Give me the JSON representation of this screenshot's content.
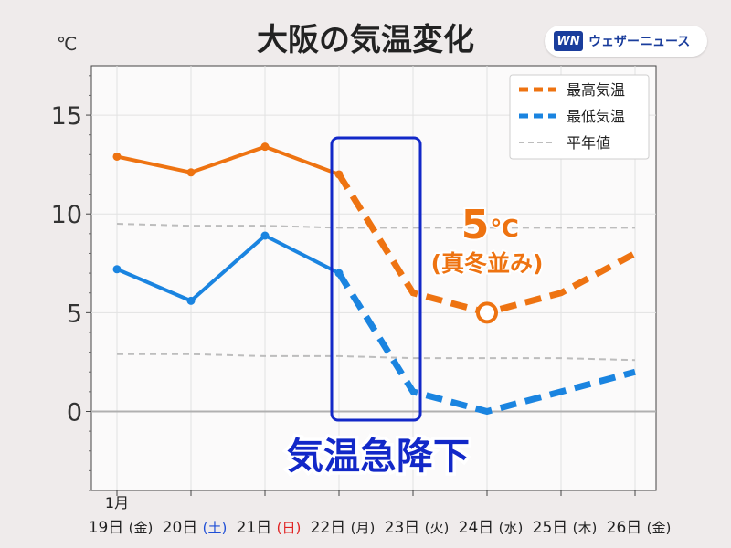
{
  "title": "大阪の気温変化",
  "unit_label": "℃",
  "brand": {
    "logo": "WN",
    "name": "ウェザーニュース"
  },
  "chart_data": {
    "type": "line",
    "x": [
      {
        "month": "1月",
        "day": "19日",
        "dow": "(金)",
        "dow_color": "#222222"
      },
      {
        "month": "",
        "day": "20日",
        "dow": "(土)",
        "dow_color": "#1f4fd6"
      },
      {
        "month": "",
        "day": "21日",
        "dow": "(日)",
        "dow_color": "#e02020"
      },
      {
        "month": "",
        "day": "22日",
        "dow": "(月)",
        "dow_color": "#222222"
      },
      {
        "month": "",
        "day": "23日",
        "dow": "(火)",
        "dow_color": "#222222"
      },
      {
        "month": "",
        "day": "24日",
        "dow": "(水)",
        "dow_color": "#222222"
      },
      {
        "month": "",
        "day": "25日",
        "dow": "(木)",
        "dow_color": "#222222"
      },
      {
        "month": "",
        "day": "26日",
        "dow": "(金)",
        "dow_color": "#222222"
      }
    ],
    "yticks": [
      "15",
      "10",
      "5",
      "0"
    ],
    "ylim": [
      -4,
      17.5
    ],
    "grid": true,
    "legend_position": "top-right",
    "series": [
      {
        "name": "最高気温",
        "color": "#ee7311",
        "values": [
          12.9,
          12.1,
          13.4,
          12.0,
          6.0,
          5.0,
          6.0,
          8.0
        ],
        "observed_count": 4
      },
      {
        "name": "最低気温",
        "color": "#1a84e0",
        "values": [
          7.2,
          5.6,
          8.9,
          7.0,
          1.0,
          0.0,
          1.0,
          2.0
        ],
        "observed_count": 4
      },
      {
        "name": "平年値",
        "color": "#bdbdbd",
        "values_high": [
          9.5,
          9.4,
          9.4,
          9.3,
          9.3,
          9.3,
          9.3,
          9.3
        ],
        "values_low": [
          2.9,
          2.9,
          2.8,
          2.8,
          2.7,
          2.7,
          2.7,
          2.6
        ]
      }
    ],
    "annotations": {
      "highlight_value": "5",
      "highlight_unit": "℃",
      "highlight_note": "(真冬並み)",
      "highlight_point_index": 5,
      "highlight_box_range": [
        3,
        4
      ],
      "callout": "気温急降下",
      "callout_color": "#1228c8"
    }
  }
}
